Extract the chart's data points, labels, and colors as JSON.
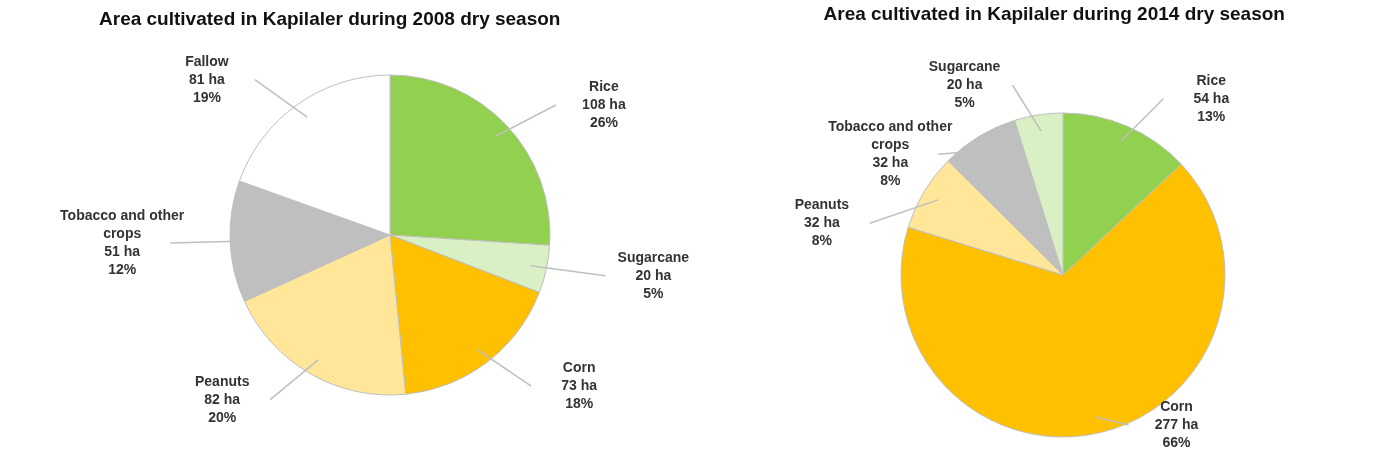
{
  "chart_data": [
    {
      "type": "pie",
      "title": "Area cultivated in Kapilaler during 2008 dry season",
      "categories": [
        "Rice",
        "Sugarcane",
        "Corn",
        "Peanuts",
        "Tobacco and other crops",
        "Fallow"
      ],
      "values": [
        108,
        20,
        73,
        82,
        51,
        81
      ],
      "colors": [
        "#92d050",
        "#d9f0c4",
        "#ffc000",
        "#ffe699",
        "#bfbfbf",
        "#ffffff"
      ],
      "value_labels": [
        "108 ha\n26%",
        "20 ha\n5%",
        "73 ha\n18%",
        "82 ha\n20%",
        "51 ha\n12%",
        "81 ha\n19%"
      ]
    },
    {
      "type": "pie",
      "title": "Area cultivated in Kapilaler during 2014 dry season",
      "categories": [
        "Rice",
        "Corn",
        "Peanuts",
        "Tobacco and other crops",
        "Sugarcane"
      ],
      "values": [
        54,
        277,
        32,
        32,
        20
      ],
      "colors": [
        "#92d050",
        "#ffc000",
        "#ffe699",
        "#bfbfbf",
        "#d9f0c4"
      ],
      "value_labels": [
        "54 ha\n13%",
        "277 ha\n66%",
        "32 ha\n8%",
        "32 ha\n8%",
        "20 ha\n5%"
      ]
    }
  ]
}
